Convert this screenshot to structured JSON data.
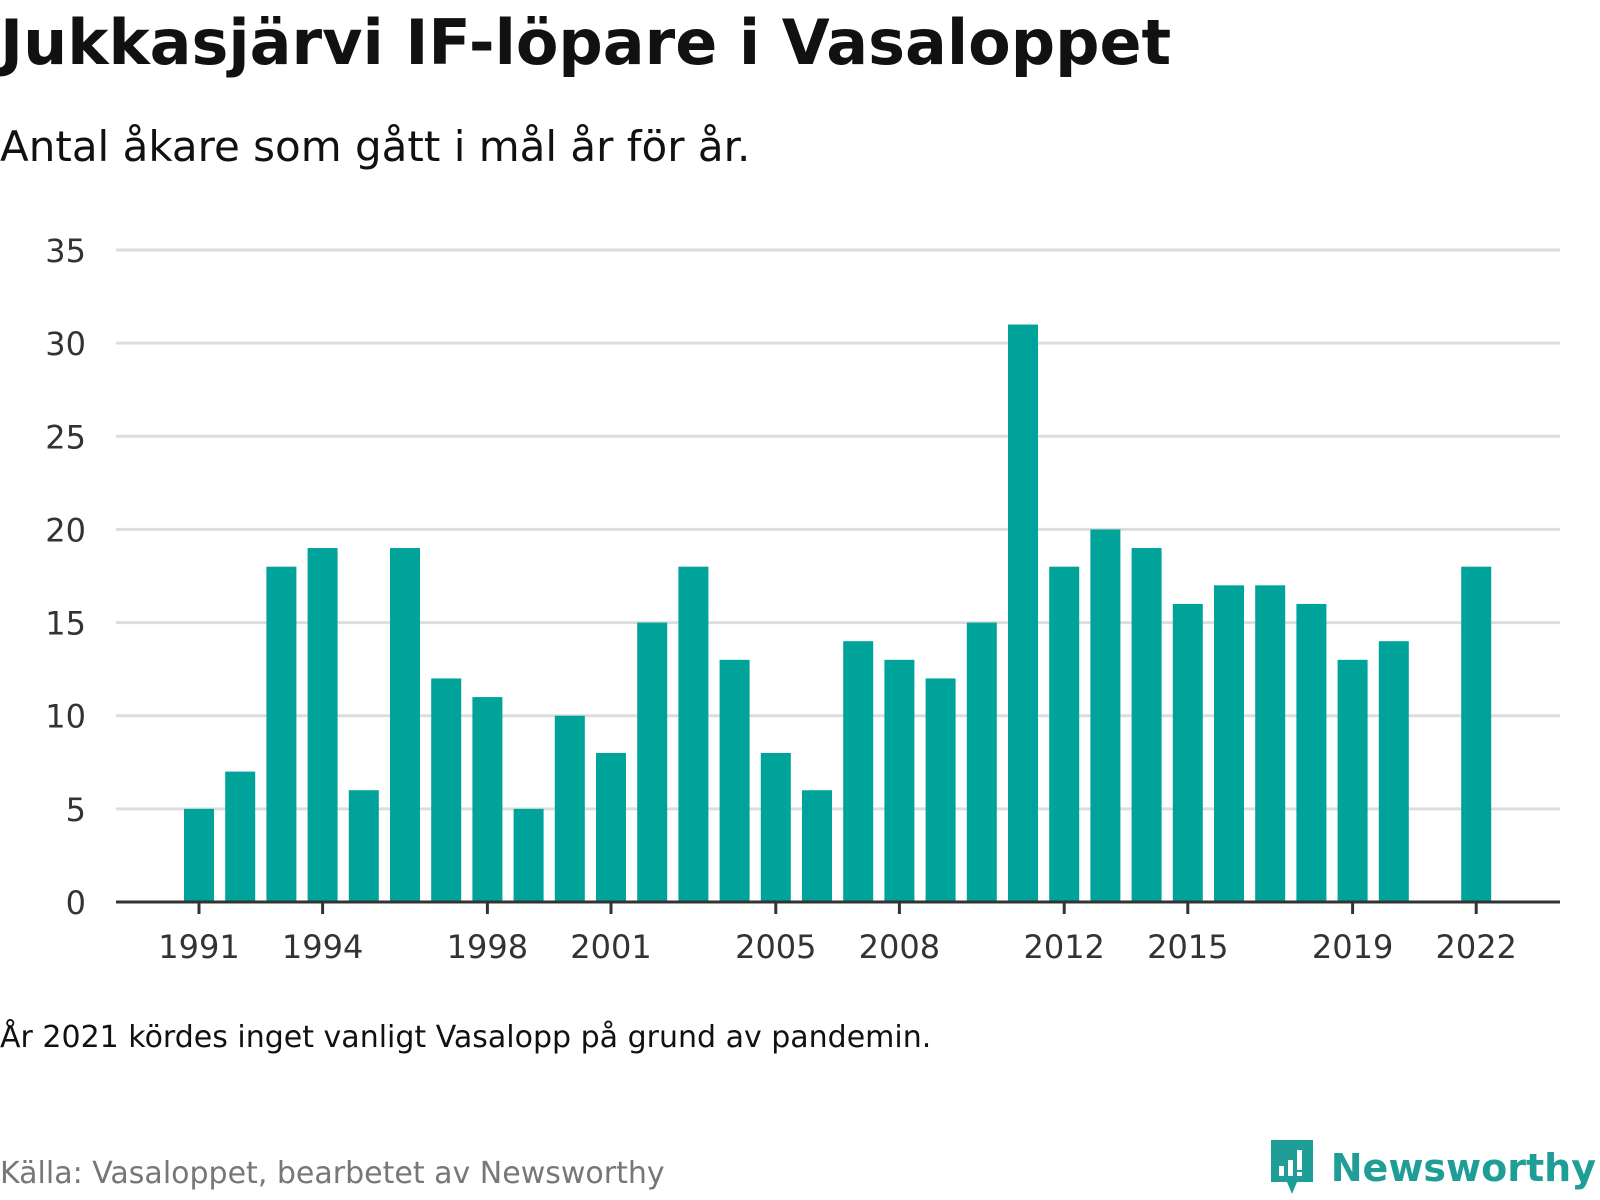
{
  "header": {
    "title": "Jukkasjärvi IF-löpare i Vasaloppet",
    "subtitle": "Antal åkare som gått i mål år för år."
  },
  "footer": {
    "note": "År 2021 kördes inget vanligt Vasalopp på grund av pandemin.",
    "source": "Källa: Vasaloppet, bearbetet av Newsworthy",
    "logo_text": "Newsworthy",
    "logo_icon": "newsworthy-logo-icon"
  },
  "colors": {
    "bar": "#00a39a",
    "grid": "#dddddd",
    "axis": "#333333",
    "logo": "#1e9e96"
  },
  "chart_data": {
    "type": "bar",
    "categories": [
      "1991",
      "1992",
      "1993",
      "1994",
      "1995",
      "1996",
      "1997",
      "1998",
      "1999",
      "2000",
      "2001",
      "2002",
      "2003",
      "2004",
      "2005",
      "2006",
      "2007",
      "2008",
      "2009",
      "2010",
      "2011",
      "2012",
      "2013",
      "2014",
      "2015",
      "2016",
      "2017",
      "2018",
      "2019",
      "2020",
      "2021",
      "2022"
    ],
    "values": [
      5,
      7,
      18,
      19,
      6,
      19,
      12,
      11,
      5,
      10,
      8,
      15,
      18,
      13,
      8,
      6,
      14,
      13,
      12,
      15,
      31,
      18,
      20,
      19,
      16,
      17,
      17,
      16,
      13,
      14,
      null,
      18
    ],
    "x_tick_labels": [
      "1991",
      "1994",
      "1998",
      "2001",
      "2005",
      "2008",
      "2012",
      "2015",
      "2019",
      "2022"
    ],
    "y_ticks": [
      0,
      5,
      10,
      15,
      20,
      25,
      30,
      35
    ],
    "ylim": [
      0,
      35
    ],
    "grid": true,
    "legend": "none"
  }
}
